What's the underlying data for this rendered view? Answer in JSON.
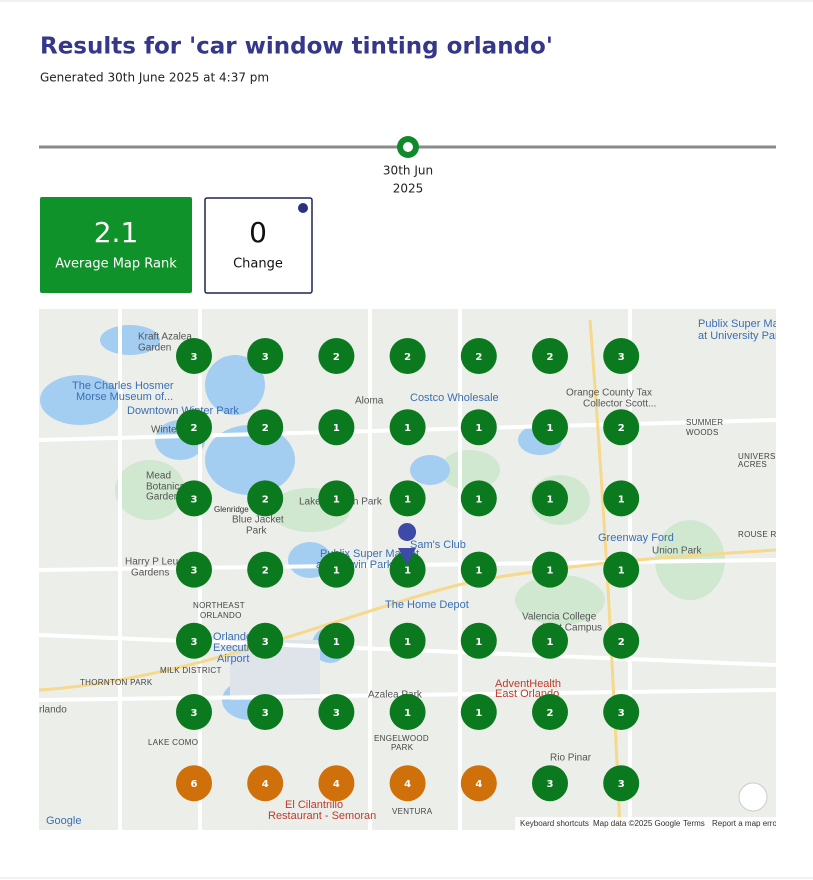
{
  "header": {
    "title": "Results for 'car window tinting orlando'",
    "generated": "Generated 30th June 2025 at 4:37 pm"
  },
  "timeline": {
    "dates": [
      {
        "lines": [
          "30th Jun",
          "2025"
        ]
      }
    ],
    "color": "#0e8a2a"
  },
  "stats": [
    {
      "value": 2.1,
      "label": "Average Map Rank"
    },
    {
      "value": 0,
      "label": "Change"
    }
  ],
  "grid": {
    "ranks": [
      [
        3,
        3,
        2,
        2,
        2,
        2,
        3
      ],
      [
        2,
        2,
        1,
        1,
        1,
        1,
        2
      ],
      [
        3,
        2,
        1,
        1,
        1,
        1,
        1
      ],
      [
        3,
        2,
        1,
        1,
        1,
        1,
        1
      ],
      [
        3,
        3,
        1,
        1,
        1,
        1,
        2
      ],
      [
        3,
        3,
        3,
        1,
        1,
        2,
        3
      ],
      [
        6,
        4,
        4,
        4,
        4,
        3,
        3
      ]
    ],
    "colors": {
      "1": "#0b7a1e",
      "2": "#0b7a1e",
      "3": "#0b7a1e",
      "4": "#cf700a",
      "6": "#cf700a"
    }
  },
  "map": {
    "labels": [
      "Kraft Azalea",
      "Garden",
      "The Charles Hosmer",
      "Morse Museum of...",
      "Downtown Winter Park",
      "Winter",
      "Aloma",
      "Costco Wholesale",
      "Orange County Tax",
      "Collector Scott...",
      "SUMMER",
      "WOODS",
      "UNIVERSITY",
      "ACRES",
      "Mead",
      "Botanical",
      "Garden",
      "Glenridge",
      "Blue Jacket",
      "Park",
      "Lake Baldwin Park",
      "Greenway Ford",
      "Union Park",
      "ROUSE RUN",
      "Harry P Leu",
      "Gardens",
      "NORTHEAST",
      "ORLANDO",
      "Publix Super Market",
      "at Baldwin Park",
      "Sam's Club",
      "The Home Depot",
      "Valencia College",
      "East Campus",
      "Orlando",
      "Executive",
      "Airport",
      "MILK DISTRICT",
      "THORNTON PARK",
      "Azalea Park",
      "AdventHealth",
      "East Orlando",
      "rlando",
      "LAKE COMO",
      "ENGELWOOD",
      "PARK",
      "Rio Pinar",
      "El Cilantrillo",
      "Restaurant - Semoran",
      "VENTURA",
      "Publix Super Ma",
      "at University Parl",
      "Google"
    ],
    "footer": [
      "Keyboard shortcuts",
      "Map data ©2025 Google",
      "Terms",
      "Report a map error"
    ]
  }
}
